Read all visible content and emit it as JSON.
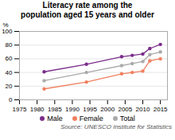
{
  "chart_data": {
    "type": "line",
    "title": "Literacy rate among the\npopulation aged 15 years and older",
    "ylabel": "%",
    "source": "Source: UNESCO Institute for Statistics",
    "x": [
      1982,
      1994,
      2004,
      2007,
      2010,
      2012,
      2015
    ],
    "series": [
      {
        "name": "Male",
        "color": "#7B2D8B",
        "values": [
          41,
          52,
          63,
          65,
          67,
          75,
          81
        ]
      },
      {
        "name": "Female",
        "color": "#F08060",
        "values": [
          16,
          26,
          38,
          40,
          42,
          57,
          60
        ]
      },
      {
        "name": "Total",
        "color": "#AAAAAA",
        "values": [
          28,
          40,
          50,
          53,
          56,
          66,
          70
        ]
      }
    ],
    "xlim": [
      1975,
      2017
    ],
    "xticks": [
      1975,
      1980,
      1985,
      1990,
      1995,
      2000,
      2005,
      2010,
      2015
    ],
    "ylim": [
      0,
      100
    ],
    "yticks": [
      0,
      20,
      40,
      60,
      80,
      100
    ],
    "grid": true,
    "legend": "bottom",
    "marker": "circle"
  }
}
